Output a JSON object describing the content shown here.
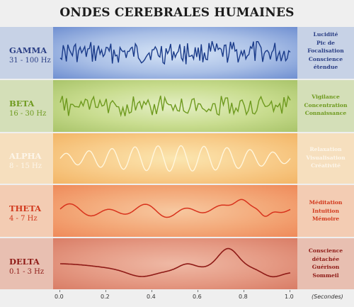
{
  "title": "ONDES CEREBRALES HUMAINES",
  "bands": [
    {
      "name": "GAMMA",
      "freq": "31 - 100 Hz",
      "descriptions": [
        "Lucidité",
        "Pic de",
        "Focalisation",
        "Conscience",
        "étendue"
      ],
      "colors": {
        "left": "#c7d2e6",
        "mid_center": "#d8e6f7",
        "mid_edge": "#6f8fd1",
        "right": "#c7d2e6",
        "wave": "#1a3b8a",
        "text": "#2b3f85"
      }
    },
    {
      "name": "BETA",
      "freq": "16 - 30 Hz",
      "descriptions": [
        "Vigilance",
        "Concentration",
        "Connaissance"
      ],
      "colors": {
        "left": "#d4dfb8",
        "mid_center": "#e4efc4",
        "mid_edge": "#a9c46a",
        "right": "#d4dfb8",
        "wave": "#6e9a1e",
        "text": "#6e9a1e"
      }
    },
    {
      "name": "ALPHA",
      "freq": "8 - 15 Hz",
      "descriptions": [
        "Relaxation",
        "Visualisation",
        "Créativité"
      ],
      "colors": {
        "left": "#f6dfbe",
        "mid_center": "#fbe6b0",
        "mid_edge": "#f3b566",
        "right": "#f6dfbe",
        "wave": "#fff6dc",
        "text": "#fdf6ea"
      }
    },
    {
      "name": "THETA",
      "freq": "4 - 7 Hz",
      "descriptions": [
        "Méditation",
        "Intuition",
        "Mémoire"
      ],
      "colors": {
        "left": "#f3ccb3",
        "mid_center": "#f7c8a0",
        "mid_edge": "#ef8a5a",
        "right": "#f3ccb3",
        "wave": "#d8321c",
        "text": "#d23a1e"
      }
    },
    {
      "name": "DELTA",
      "freq": "0.1 - 3 Hz",
      "descriptions": [
        "Conscience",
        "détachée",
        "Guérison",
        "Sommeil"
      ],
      "colors": {
        "left": "#e8bfb1",
        "mid_center": "#efb9a5",
        "mid_edge": "#d97d66",
        "right": "#e8bfb1",
        "wave": "#8e1a16",
        "text": "#8e1a16"
      }
    }
  ],
  "axis": {
    "ticks": [
      "0.0",
      "0.2",
      "0.4",
      "0.6",
      "0.8",
      "1.0"
    ],
    "unit": "(Secondes)"
  }
}
